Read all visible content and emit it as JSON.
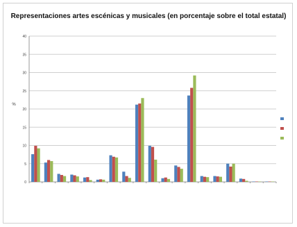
{
  "chart_data": {
    "type": "bar",
    "title": "Representaciones artes escénicas y musicales (en porcentaje sobre el total estatal)",
    "xlabel": "",
    "ylabel": "%",
    "ylim": [
      0,
      40
    ],
    "yticks": [
      "0",
      "5",
      "10",
      "15",
      "20",
      "25",
      "30",
      "35",
      "40"
    ],
    "grid": true,
    "legend_position": "right",
    "categories": [
      "",
      "",
      "",
      "",
      "",
      "",
      "",
      "",
      "",
      "",
      "",
      "",
      "",
      "",
      "",
      "",
      "",
      "",
      ""
    ],
    "series": [
      {
        "color": "#4f81bd",
        "values": [
          7.6,
          5.3,
          2.2,
          2.0,
          1.2,
          0.6,
          7.3,
          2.8,
          21.2,
          9.9,
          1.0,
          4.5,
          23.7,
          1.6,
          1.6,
          5.0,
          0.9,
          0.1,
          0.1
        ]
      },
      {
        "color": "#c0504d",
        "values": [
          9.9,
          6.0,
          1.9,
          1.8,
          1.3,
          0.7,
          6.9,
          1.6,
          21.5,
          9.6,
          1.2,
          4.1,
          25.8,
          1.4,
          1.5,
          4.2,
          0.8,
          0.1,
          0.1
        ]
      },
      {
        "color": "#9bbb59",
        "values": [
          9.2,
          5.7,
          1.6,
          1.5,
          0.5,
          0.6,
          6.7,
          1.1,
          23.0,
          6.1,
          0.8,
          3.6,
          29.2,
          1.3,
          1.4,
          5.0,
          0.3,
          0.1,
          0.1
        ]
      }
    ]
  }
}
